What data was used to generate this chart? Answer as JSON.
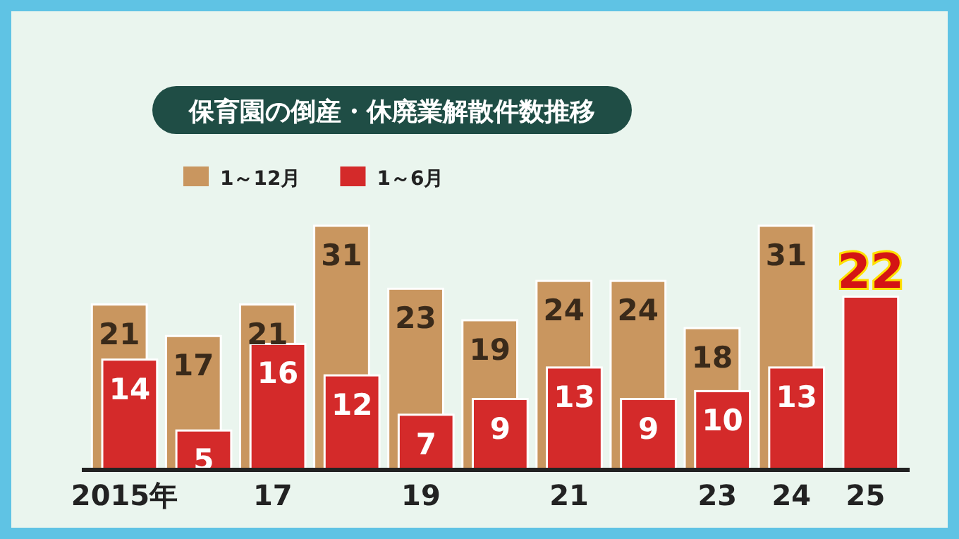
{
  "chart_data": {
    "type": "bar",
    "title": "保育園の倒産・休廃業解散件数推移",
    "categories": [
      "2015年",
      null,
      "17",
      null,
      "19",
      null,
      "21",
      null,
      "23",
      "24",
      "25"
    ],
    "series": [
      {
        "name": "1～12月",
        "color": "#c9965f",
        "values": [
          21,
          17,
          21,
          31,
          23,
          19,
          24,
          24,
          18,
          31,
          null
        ]
      },
      {
        "name": "1～6月",
        "color": "#d42a2a",
        "values": [
          14,
          5,
          16,
          12,
          7,
          9,
          13,
          9,
          10,
          13,
          22
        ]
      }
    ],
    "data_labels": true,
    "legend": "top left"
  }
}
